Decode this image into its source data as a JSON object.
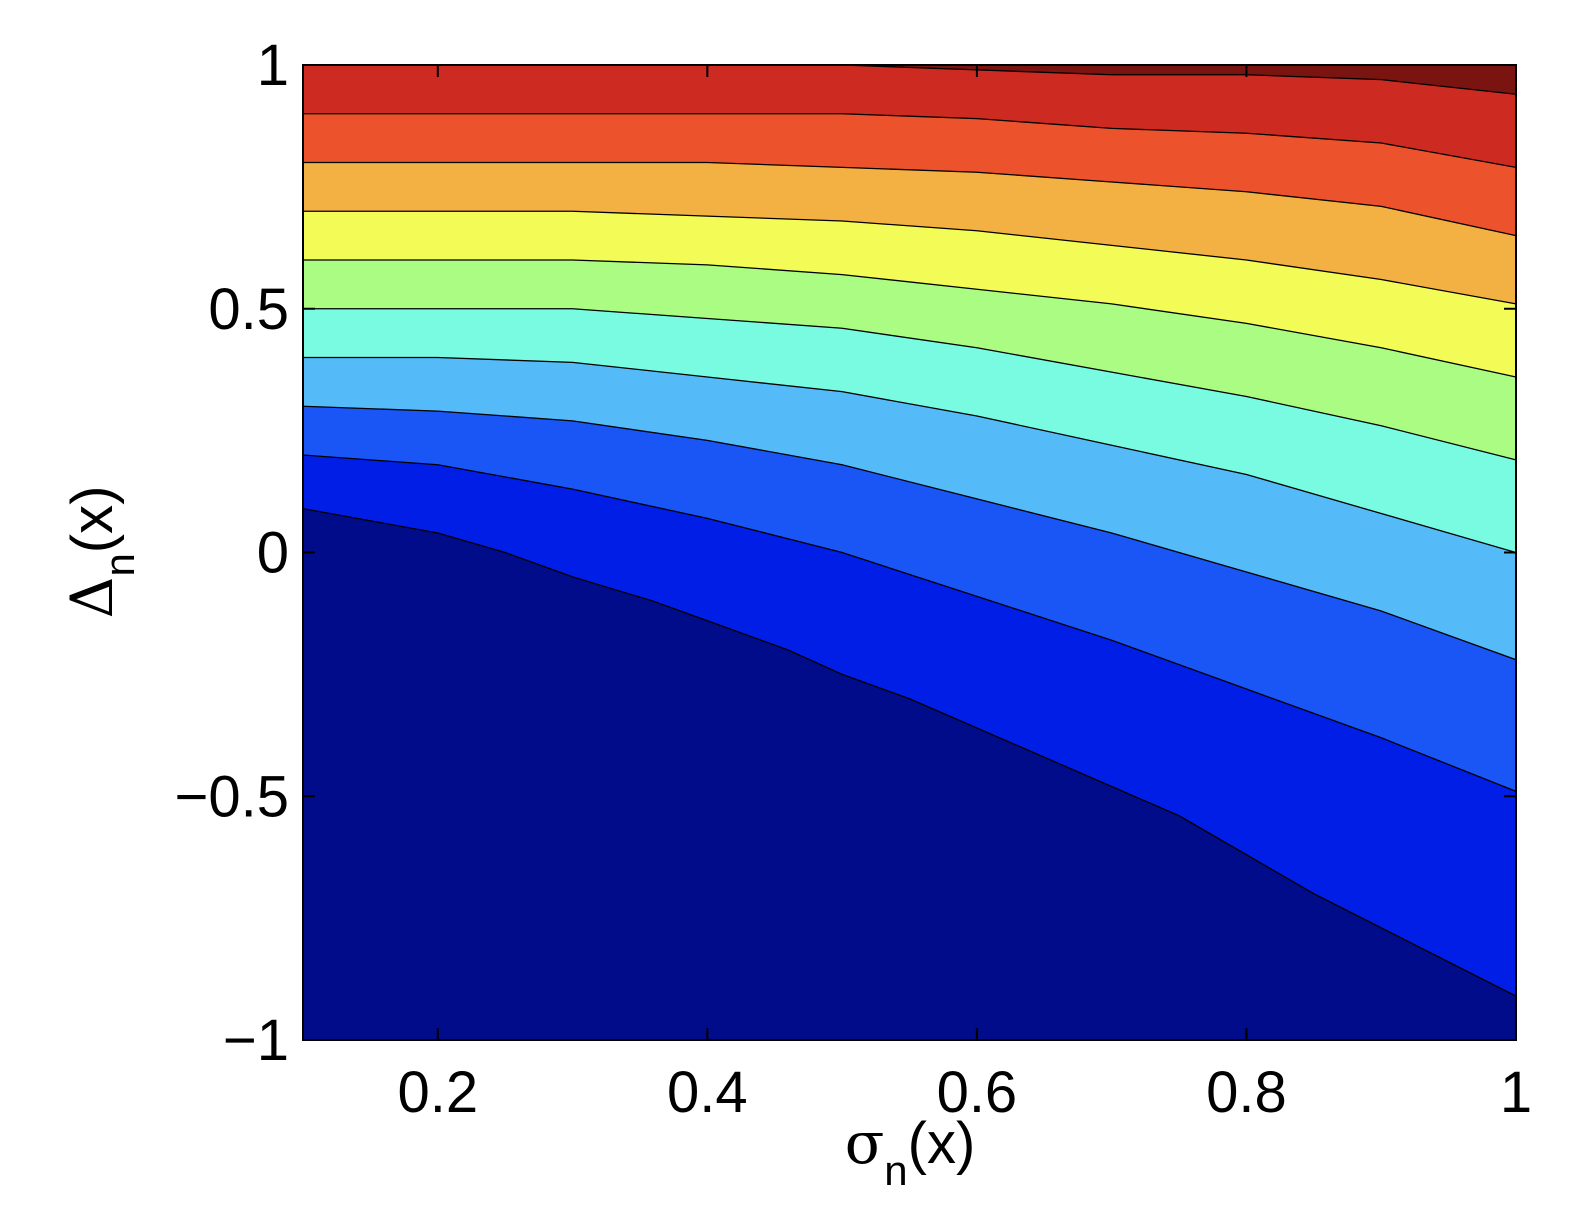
{
  "chart_data": {
    "type": "contour",
    "xlabel": {
      "symbol": "σ",
      "subscript": "n",
      "rest": "(x)"
    },
    "ylabel": {
      "symbol": "Δ",
      "subscript": "n",
      "rest": "(x)"
    },
    "xlim": [
      0.1,
      1.0
    ],
    "ylim": [
      -1,
      1
    ],
    "x_ticks": [
      0.2,
      0.4,
      0.6,
      0.8,
      1.0
    ],
    "x_tick_labels": [
      "0.2",
      "0.4",
      "0.6",
      "0.8",
      "1"
    ],
    "y_ticks": [
      -1,
      -0.5,
      0,
      0.5,
      1
    ],
    "y_tick_labels": [
      "−1",
      "−0.5",
      "0",
      "0.5",
      "1"
    ],
    "grid": false,
    "colormap": "jet",
    "band_colors": [
      "#000c8a",
      "#001ee6",
      "#1a55f5",
      "#55bbf8",
      "#78fbe0",
      "#aafc82",
      "#f3fc56",
      "#f4b143",
      "#ec522c",
      "#cd2a22",
      "#7a1410"
    ],
    "contour_lines": [
      {
        "id": "line-1",
        "points": [
          [
            0.1,
            0.09
          ],
          [
            0.2,
            0.04
          ],
          [
            0.25,
            0.0
          ],
          [
            0.3,
            -0.05
          ],
          [
            0.36,
            -0.1
          ],
          [
            0.4,
            -0.14
          ],
          [
            0.46,
            -0.2
          ],
          [
            0.5,
            -0.25
          ],
          [
            0.55,
            -0.3
          ],
          [
            0.6,
            -0.36
          ],
          [
            0.65,
            -0.42
          ],
          [
            0.7,
            -0.48
          ],
          [
            0.75,
            -0.54
          ],
          [
            0.8,
            -0.62
          ],
          [
            0.85,
            -0.7
          ],
          [
            0.9,
            -0.77
          ],
          [
            1.0,
            -0.91
          ]
        ]
      },
      {
        "id": "line-2",
        "points": [
          [
            0.1,
            0.2
          ],
          [
            0.2,
            0.18
          ],
          [
            0.3,
            0.13
          ],
          [
            0.4,
            0.07
          ],
          [
            0.5,
            0.0
          ],
          [
            0.6,
            -0.09
          ],
          [
            0.7,
            -0.18
          ],
          [
            0.8,
            -0.28
          ],
          [
            0.9,
            -0.38
          ],
          [
            1.0,
            -0.49
          ]
        ]
      },
      {
        "id": "line-3",
        "points": [
          [
            0.1,
            0.3
          ],
          [
            0.2,
            0.29
          ],
          [
            0.3,
            0.27
          ],
          [
            0.4,
            0.23
          ],
          [
            0.5,
            0.18
          ],
          [
            0.6,
            0.11
          ],
          [
            0.7,
            0.04
          ],
          [
            0.8,
            -0.04
          ],
          [
            0.9,
            -0.12
          ],
          [
            1.0,
            -0.22
          ]
        ]
      },
      {
        "id": "line-4",
        "points": [
          [
            0.1,
            0.4
          ],
          [
            0.2,
            0.4
          ],
          [
            0.3,
            0.39
          ],
          [
            0.4,
            0.36
          ],
          [
            0.5,
            0.33
          ],
          [
            0.6,
            0.28
          ],
          [
            0.7,
            0.22
          ],
          [
            0.8,
            0.16
          ],
          [
            0.9,
            0.08
          ],
          [
            1.0,
            0.0
          ]
        ]
      },
      {
        "id": "line-5",
        "points": [
          [
            0.1,
            0.5
          ],
          [
            0.2,
            0.5
          ],
          [
            0.3,
            0.5
          ],
          [
            0.4,
            0.48
          ],
          [
            0.5,
            0.46
          ],
          [
            0.6,
            0.42
          ],
          [
            0.7,
            0.37
          ],
          [
            0.8,
            0.32
          ],
          [
            0.9,
            0.26
          ],
          [
            1.0,
            0.19
          ]
        ]
      },
      {
        "id": "line-6",
        "points": [
          [
            0.1,
            0.6
          ],
          [
            0.2,
            0.6
          ],
          [
            0.3,
            0.6
          ],
          [
            0.4,
            0.59
          ],
          [
            0.5,
            0.57
          ],
          [
            0.6,
            0.54
          ],
          [
            0.7,
            0.51
          ],
          [
            0.8,
            0.47
          ],
          [
            0.9,
            0.42
          ],
          [
            1.0,
            0.36
          ]
        ]
      },
      {
        "id": "line-7",
        "points": [
          [
            0.1,
            0.7
          ],
          [
            0.2,
            0.7
          ],
          [
            0.3,
            0.7
          ],
          [
            0.4,
            0.69
          ],
          [
            0.5,
            0.68
          ],
          [
            0.6,
            0.66
          ],
          [
            0.7,
            0.63
          ],
          [
            0.8,
            0.6
          ],
          [
            0.9,
            0.56
          ],
          [
            1.0,
            0.51
          ]
        ]
      },
      {
        "id": "line-8",
        "points": [
          [
            0.1,
            0.8
          ],
          [
            0.2,
            0.8
          ],
          [
            0.3,
            0.8
          ],
          [
            0.4,
            0.8
          ],
          [
            0.5,
            0.79
          ],
          [
            0.6,
            0.78
          ],
          [
            0.7,
            0.76
          ],
          [
            0.8,
            0.74
          ],
          [
            0.9,
            0.71
          ],
          [
            1.0,
            0.65
          ]
        ]
      },
      {
        "id": "line-9",
        "points": [
          [
            0.1,
            0.9
          ],
          [
            0.2,
            0.9
          ],
          [
            0.3,
            0.9
          ],
          [
            0.4,
            0.9
          ],
          [
            0.5,
            0.9
          ],
          [
            0.6,
            0.89
          ],
          [
            0.7,
            0.87
          ],
          [
            0.8,
            0.86
          ],
          [
            0.9,
            0.84
          ],
          [
            1.0,
            0.79
          ]
        ]
      },
      {
        "id": "line-10",
        "points": [
          [
            0.5,
            1.0
          ],
          [
            0.6,
            0.99
          ],
          [
            0.7,
            0.98
          ],
          [
            0.8,
            0.98
          ],
          [
            0.9,
            0.97
          ],
          [
            1.0,
            0.94
          ]
        ]
      }
    ]
  }
}
